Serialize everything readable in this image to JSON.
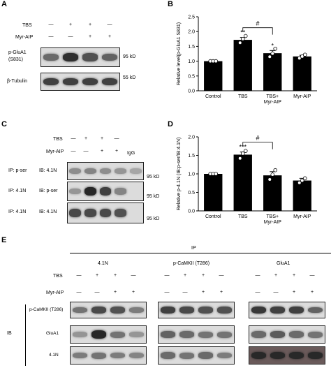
{
  "panel_letters": [
    "A",
    "B",
    "C",
    "D",
    "E"
  ],
  "treatment_rows": [
    "TBS",
    "Myr-AIP"
  ],
  "plus": "+",
  "minus": "—",
  "panelA": {
    "tbs": [
      "—",
      "+",
      "+",
      "—"
    ],
    "myr": [
      "—",
      "—",
      "+",
      "+"
    ],
    "blots": [
      {
        "label_lines": [
          "p-GluA1",
          "(S831)"
        ],
        "kd": "95 kD",
        "intensities": [
          0.55,
          0.9,
          0.7,
          0.6
        ]
      },
      {
        "label_lines": [
          "β-Tubulin"
        ],
        "kd": "55 kD",
        "intensities": [
          0.8,
          0.8,
          0.8,
          0.8
        ]
      }
    ]
  },
  "panelC": {
    "tbs": [
      "—",
      "+",
      "+",
      "—"
    ],
    "myr": [
      "—",
      "—",
      "+",
      "+"
    ],
    "igg": "IgG",
    "rows": [
      {
        "ip": "IP: p-ser",
        "ib": "IB: 4.1N",
        "kd": "95 kD",
        "intensities": [
          0.35,
          0.4,
          0.35,
          0.3,
          0.2
        ]
      },
      {
        "ip": "IP: 4.1N",
        "ib": "IB: p-ser",
        "kd": "95 kD",
        "intensities": [
          0.3,
          0.95,
          0.8,
          0.4,
          0.0
        ]
      },
      {
        "ip": "IP: 4.1N",
        "ib": "IB: 4.1N",
        "kd": "95 kD",
        "intensities": [
          0.75,
          0.75,
          0.75,
          0.7,
          0.0
        ]
      }
    ]
  },
  "panelE": {
    "ip_label": "IP",
    "ib_label": "IB",
    "groups": [
      "4.1N",
      "p-CaMKII (T286)",
      "GluA1"
    ],
    "tbs": [
      "—",
      "+",
      "+",
      "—"
    ],
    "myr": [
      "—",
      "—",
      "+",
      "+"
    ],
    "row_labels": [
      "p-CaMKII (T286)",
      "GluA1",
      "4.1N"
    ]
  },
  "chart_data": [
    {
      "panel": "B",
      "type": "bar",
      "categories": [
        "Control",
        "TBS",
        "TBS+\nMyr-AIP",
        "Myr-AIP"
      ],
      "values": [
        1.0,
        1.72,
        1.27,
        1.16
      ],
      "errors": [
        0.0,
        0.08,
        0.09,
        0.04
      ],
      "points": [
        [
          1.0,
          1.0,
          1.0
        ],
        [
          1.62,
          1.75,
          1.85
        ],
        [
          1.15,
          1.26,
          1.42
        ],
        [
          1.1,
          1.16,
          1.22
        ]
      ],
      "significance": [
        "",
        "**",
        "*",
        ""
      ],
      "bracket": {
        "from": "TBS",
        "to": "TBS+\nMyr-AIP",
        "label": "#"
      },
      "title": "",
      "xlabel": "",
      "ylabel": "Relative level(p-GluA1 S831)",
      "ylim": [
        0.0,
        2.5
      ],
      "yticks": [
        "0.0",
        "0.5",
        "1.0",
        "1.5",
        "2.0",
        "2.5"
      ],
      "bar_color": "#000000"
    },
    {
      "panel": "D",
      "type": "bar",
      "categories": [
        "Control",
        "TBS",
        "TBS+\nMyr-AIP",
        "Myr-AIP"
      ],
      "values": [
        1.0,
        1.52,
        0.96,
        0.82
      ],
      "errors": [
        0.0,
        0.07,
        0.1,
        0.06
      ],
      "points": [
        [
          1.0,
          1.0,
          1.0
        ],
        [
          1.42,
          1.55,
          1.62
        ],
        [
          0.85,
          0.98,
          1.1
        ],
        [
          0.76,
          0.82,
          0.88
        ]
      ],
      "significance": [
        "",
        "***",
        "",
        ""
      ],
      "bracket": {
        "from": "TBS",
        "to": "TBS+\nMyr-AIP",
        "label": "#"
      },
      "title": "",
      "xlabel": "",
      "ylabel": "Relative p-4.1N (IB:p-ser/IB:4.1N)",
      "ylim": [
        0.0,
        2.0
      ],
      "yticks": [
        "0.0",
        "0.5",
        "1.0",
        "1.5",
        "2.0"
      ],
      "bar_color": "#000000"
    }
  ]
}
